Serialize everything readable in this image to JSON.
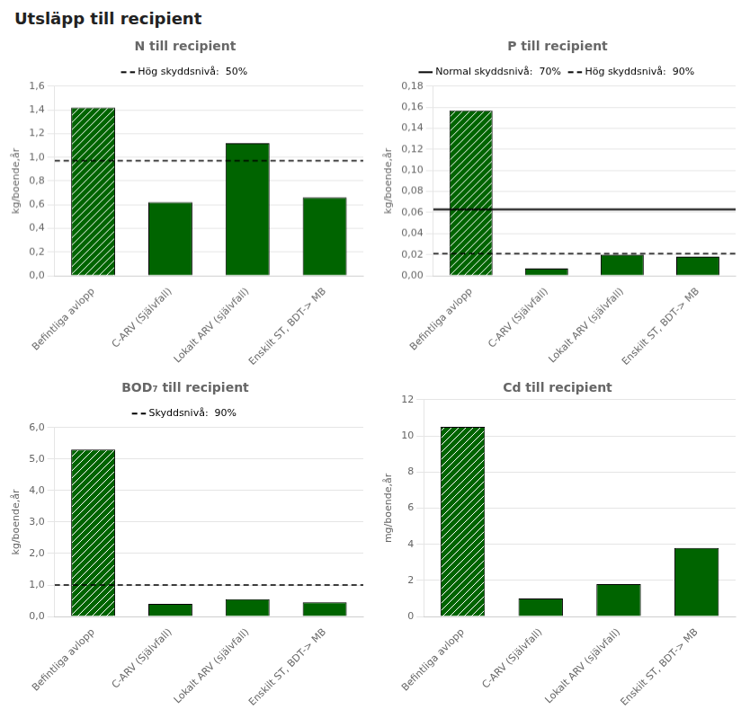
{
  "title": "Utsläpp till recipient",
  "chart_data": [
    {
      "type": "bar",
      "title": "N till recipient",
      "ylabel": "kg/boende,år",
      "categories": [
        "Befintliga avlopp",
        "C-ARV (Självfall)",
        "Lokalt ARV (självfall)",
        "Enskilt ST, BDT-> MB"
      ],
      "values": [
        1.42,
        0.62,
        1.12,
        0.66
      ],
      "color": "#006400",
      "ylim": [
        0,
        1.6
      ],
      "yticks": [
        {
          "value": 0.0,
          "label": "0,0"
        },
        {
          "value": 0.2,
          "label": "0,2"
        },
        {
          "value": 0.4,
          "label": "0,4"
        },
        {
          "value": 0.6,
          "label": "0,6"
        },
        {
          "value": 0.8,
          "label": "0,8"
        },
        {
          "value": 1.0,
          "label": "1,0"
        },
        {
          "value": 1.2,
          "label": "1,2"
        },
        {
          "value": 1.4,
          "label": "1,4"
        },
        {
          "value": 1.6,
          "label": "1,6"
        }
      ],
      "grid": true,
      "legend": "top",
      "annotations": [
        {
          "type": "hline",
          "y": 0.97,
          "label": "Hög skyddsnivå:  50%",
          "line_style": "dashed",
          "color": "black"
        }
      ]
    },
    {
      "type": "bar",
      "title": "P till recipient",
      "ylabel": "kg/boende,år",
      "categories": [
        "Befintliga avlopp",
        "C-ARV (Självfall)",
        "Lokalt ARV (självfall)",
        "Enskilt ST, BDT-> MB"
      ],
      "values": [
        0.157,
        0.007,
        0.02,
        0.018
      ],
      "color": "#006400",
      "ylim": [
        0,
        0.18
      ],
      "yticks": [
        {
          "value": 0.0,
          "label": "0,00"
        },
        {
          "value": 0.02,
          "label": "0,02"
        },
        {
          "value": 0.04,
          "label": "0,04"
        },
        {
          "value": 0.06,
          "label": "0,06"
        },
        {
          "value": 0.08,
          "label": "0,08"
        },
        {
          "value": 0.1,
          "label": "0,10"
        },
        {
          "value": 0.12,
          "label": "0,12"
        },
        {
          "value": 0.14,
          "label": "0,14"
        },
        {
          "value": 0.16,
          "label": "0,16"
        },
        {
          "value": 0.18,
          "label": "0,18"
        }
      ],
      "grid": true,
      "legend": "top",
      "annotations": [
        {
          "type": "hline",
          "y": 0.063,
          "label": "Normal skyddsnivå:  70%",
          "line_style": "solid",
          "color": "black"
        },
        {
          "type": "hline",
          "y": 0.021,
          "label": "Hög skyddsnivå:  90%",
          "line_style": "dashed",
          "color": "black"
        }
      ]
    },
    {
      "type": "bar",
      "title": "BOD₇ till recipient",
      "ylabel": "kg/boende,år",
      "categories": [
        "Befintliga avlopp",
        "C-ARV (Självfall)",
        "Lokalt ARV (självfall)",
        "Enskilt ST, BDT-> MB"
      ],
      "values": [
        5.3,
        0.4,
        0.55,
        0.45
      ],
      "color": "#006400",
      "ylim": [
        0,
        6.0
      ],
      "yticks": [
        {
          "value": 0.0,
          "label": "0,0"
        },
        {
          "value": 1.0,
          "label": "1,0"
        },
        {
          "value": 2.0,
          "label": "2,0"
        },
        {
          "value": 3.0,
          "label": "3,0"
        },
        {
          "value": 4.0,
          "label": "4,0"
        },
        {
          "value": 5.0,
          "label": "5,0"
        },
        {
          "value": 6.0,
          "label": "6,0"
        }
      ],
      "grid": true,
      "legend": "top",
      "annotations": [
        {
          "type": "hline",
          "y": 1.0,
          "label": "Skyddsnivå:  90%",
          "line_style": "dashed",
          "color": "black"
        }
      ]
    },
    {
      "type": "bar",
      "title": "Cd till recipient",
      "ylabel": "mg/boende,år",
      "categories": [
        "Befintliga avlopp",
        "C-ARV (Självfall)",
        "Lokalt ARV (självfall)",
        "Enskilt ST, BDT-> MB"
      ],
      "values": [
        10.5,
        1.0,
        1.8,
        3.8
      ],
      "color": "#006400",
      "ylim": [
        0,
        12
      ],
      "yticks": [
        0,
        2,
        4,
        6,
        8,
        10,
        12
      ],
      "grid": true
    }
  ]
}
